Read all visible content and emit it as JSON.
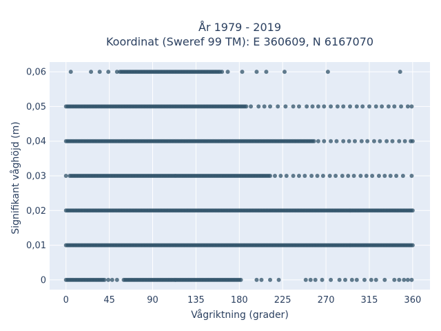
{
  "chart_data": {
    "type": "scatter",
    "title_line1": "År 1979 - 2019",
    "title_line2": "Koordinat (Sweref 99 TM): E 360609, N 6167070",
    "xlabel": "Vågriktning (grader)",
    "ylabel": "Signifikant våghöjd (m)",
    "xlim": [
      -17,
      378
    ],
    "ylim": [
      -0.0028,
      0.0628
    ],
    "x_ticks": [
      0,
      45,
      90,
      135,
      180,
      225,
      270,
      315,
      360
    ],
    "y_ticks": [
      0,
      0.01,
      0.02,
      0.03,
      0.04,
      0.05,
      0.06
    ],
    "y_tick_labels": [
      "0",
      "0,01",
      "0,02",
      "0,03",
      "0,04",
      "0,05",
      "0,06"
    ],
    "grid": true,
    "marker_color": "#2f5268",
    "plot_bg": "#e5ecf6",
    "rows": [
      {
        "y": 0.06,
        "dense": [
          [
            56,
            160
          ]
        ],
        "points": [
          5,
          26,
          35,
          44,
          53,
          162,
          168,
          183,
          198,
          208,
          227,
          272,
          347
        ]
      },
      {
        "y": 0.05,
        "dense": [
          [
            0,
            188
          ]
        ],
        "points": [
          192,
          200,
          206,
          212,
          220,
          228,
          236,
          242,
          250,
          256,
          262,
          268,
          275,
          282,
          288,
          295,
          302,
          308,
          315,
          322,
          328,
          335,
          341,
          348,
          355,
          359
        ]
      },
      {
        "y": 0.04,
        "dense": [
          [
            0,
            258
          ]
        ],
        "points": [
          262,
          268,
          275,
          281,
          288,
          294,
          300,
          307,
          313,
          320,
          326,
          333,
          339,
          346,
          352,
          358,
          360
        ]
      },
      {
        "y": 0.03,
        "dense": [
          [
            4,
            212
          ]
        ],
        "points": [
          0,
          217,
          223,
          229,
          236,
          242,
          248,
          255,
          261,
          267,
          274,
          280,
          287,
          293,
          299,
          306,
          312,
          318,
          325,
          331,
          337,
          343,
          350,
          359
        ]
      },
      {
        "y": 0.02,
        "dense": [
          [
            0,
            360
          ]
        ],
        "points": []
      },
      {
        "y": 0.01,
        "dense": [
          [
            0,
            360
          ]
        ],
        "points": []
      },
      {
        "y": 0,
        "dense": [
          [
            0,
            40
          ],
          [
            60,
            182
          ]
        ],
        "points": [
          44,
          48,
          53,
          198,
          203,
          212,
          221,
          249,
          254,
          259,
          266,
          275,
          284,
          290,
          297,
          302,
          310,
          317,
          322,
          331,
          341,
          346,
          351,
          355,
          359
        ]
      }
    ]
  }
}
